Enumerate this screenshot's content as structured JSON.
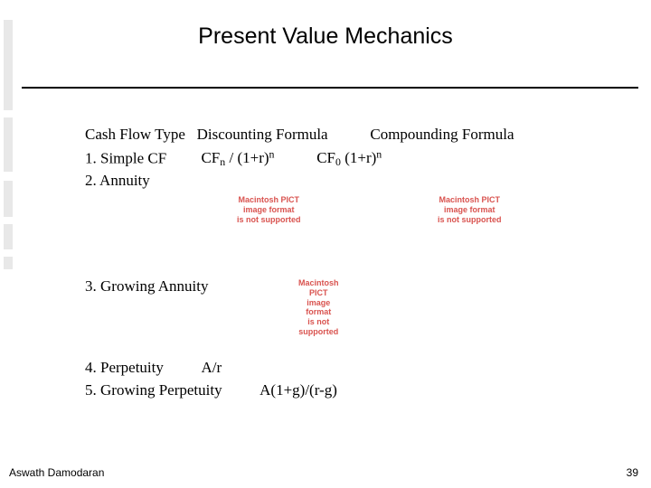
{
  "title": "Present Value Mechanics",
  "headers": {
    "cftype": "Cash Flow Type",
    "disc": "Discounting Formula",
    "comp": "Compounding Formula"
  },
  "rows": {
    "r1_label": "1. Simple CF",
    "r1_cf_prefix": "CF",
    "r1_cf_sub": "n",
    "r1_div": " / (1+r)",
    "r1_sup": "n",
    "r1_comp_prefix": "CF",
    "r1_comp_sub": "0",
    "r1_comp_mid": " (1+r)",
    "r1_comp_sup": "n",
    "r2_label": "2. Annuity",
    "r3_label": "3. Growing Annuity",
    "r4_label": "4. Perpetuity",
    "r4_formula": "A/r",
    "r5_label": "5. Growing Perpetuity",
    "r5_formula": "A(1+g)/(r-g)"
  },
  "pict_error": {
    "line1": "Macintosh PICT",
    "line2": "image format",
    "line3": "is not supported"
  },
  "footer": {
    "author": "Aswath Damodaran",
    "page": "39"
  },
  "colors": {
    "text": "#000000",
    "error": "#d9534f",
    "leftbar": "#e8e8e8",
    "bg": "#ffffff"
  }
}
